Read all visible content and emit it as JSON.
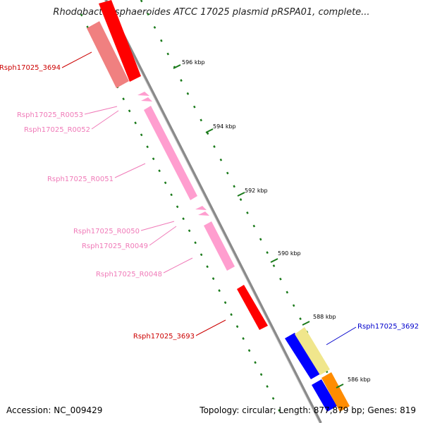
{
  "title": "Rhodobacter sphaeroides ATCC 17025 plasmid pRSPA01, complete...",
  "footer": {
    "accession": "Accession: NC_009429",
    "stats": "Topology: circular; Length: 877,879 bp; Genes: 819"
  },
  "ticks": [
    "596 kbp",
    "594 kbp",
    "592 kbp",
    "590 kbp",
    "588 kbp",
    "586 kbp"
  ],
  "colors": {
    "backbone": "#8a8a8a",
    "tick": "#1a7a1a",
    "red": "#ff0000",
    "salmon": "#f08080",
    "pink": "#ff9ecf",
    "pink_label": "#f07ab8",
    "blue": "#0000ff",
    "khaki": "#f0e68c",
    "orange": "#ff8c00"
  },
  "genes": [
    {
      "label": "Rsph17025_3694",
      "color": "red"
    },
    {
      "label": "Rsph17025_R0053",
      "color": "pink"
    },
    {
      "label": "Rsph17025_R0052",
      "color": "pink"
    },
    {
      "label": "Rsph17025_R0051",
      "color": "pink"
    },
    {
      "label": "Rsph17025_R0050",
      "color": "pink"
    },
    {
      "label": "Rsph17025_R0049",
      "color": "pink"
    },
    {
      "label": "Rsph17025_R0048",
      "color": "pink"
    },
    {
      "label": "Rsph17025_3693",
      "color": "red"
    },
    {
      "label": "Rsph17025_3692",
      "color": "blue"
    }
  ]
}
